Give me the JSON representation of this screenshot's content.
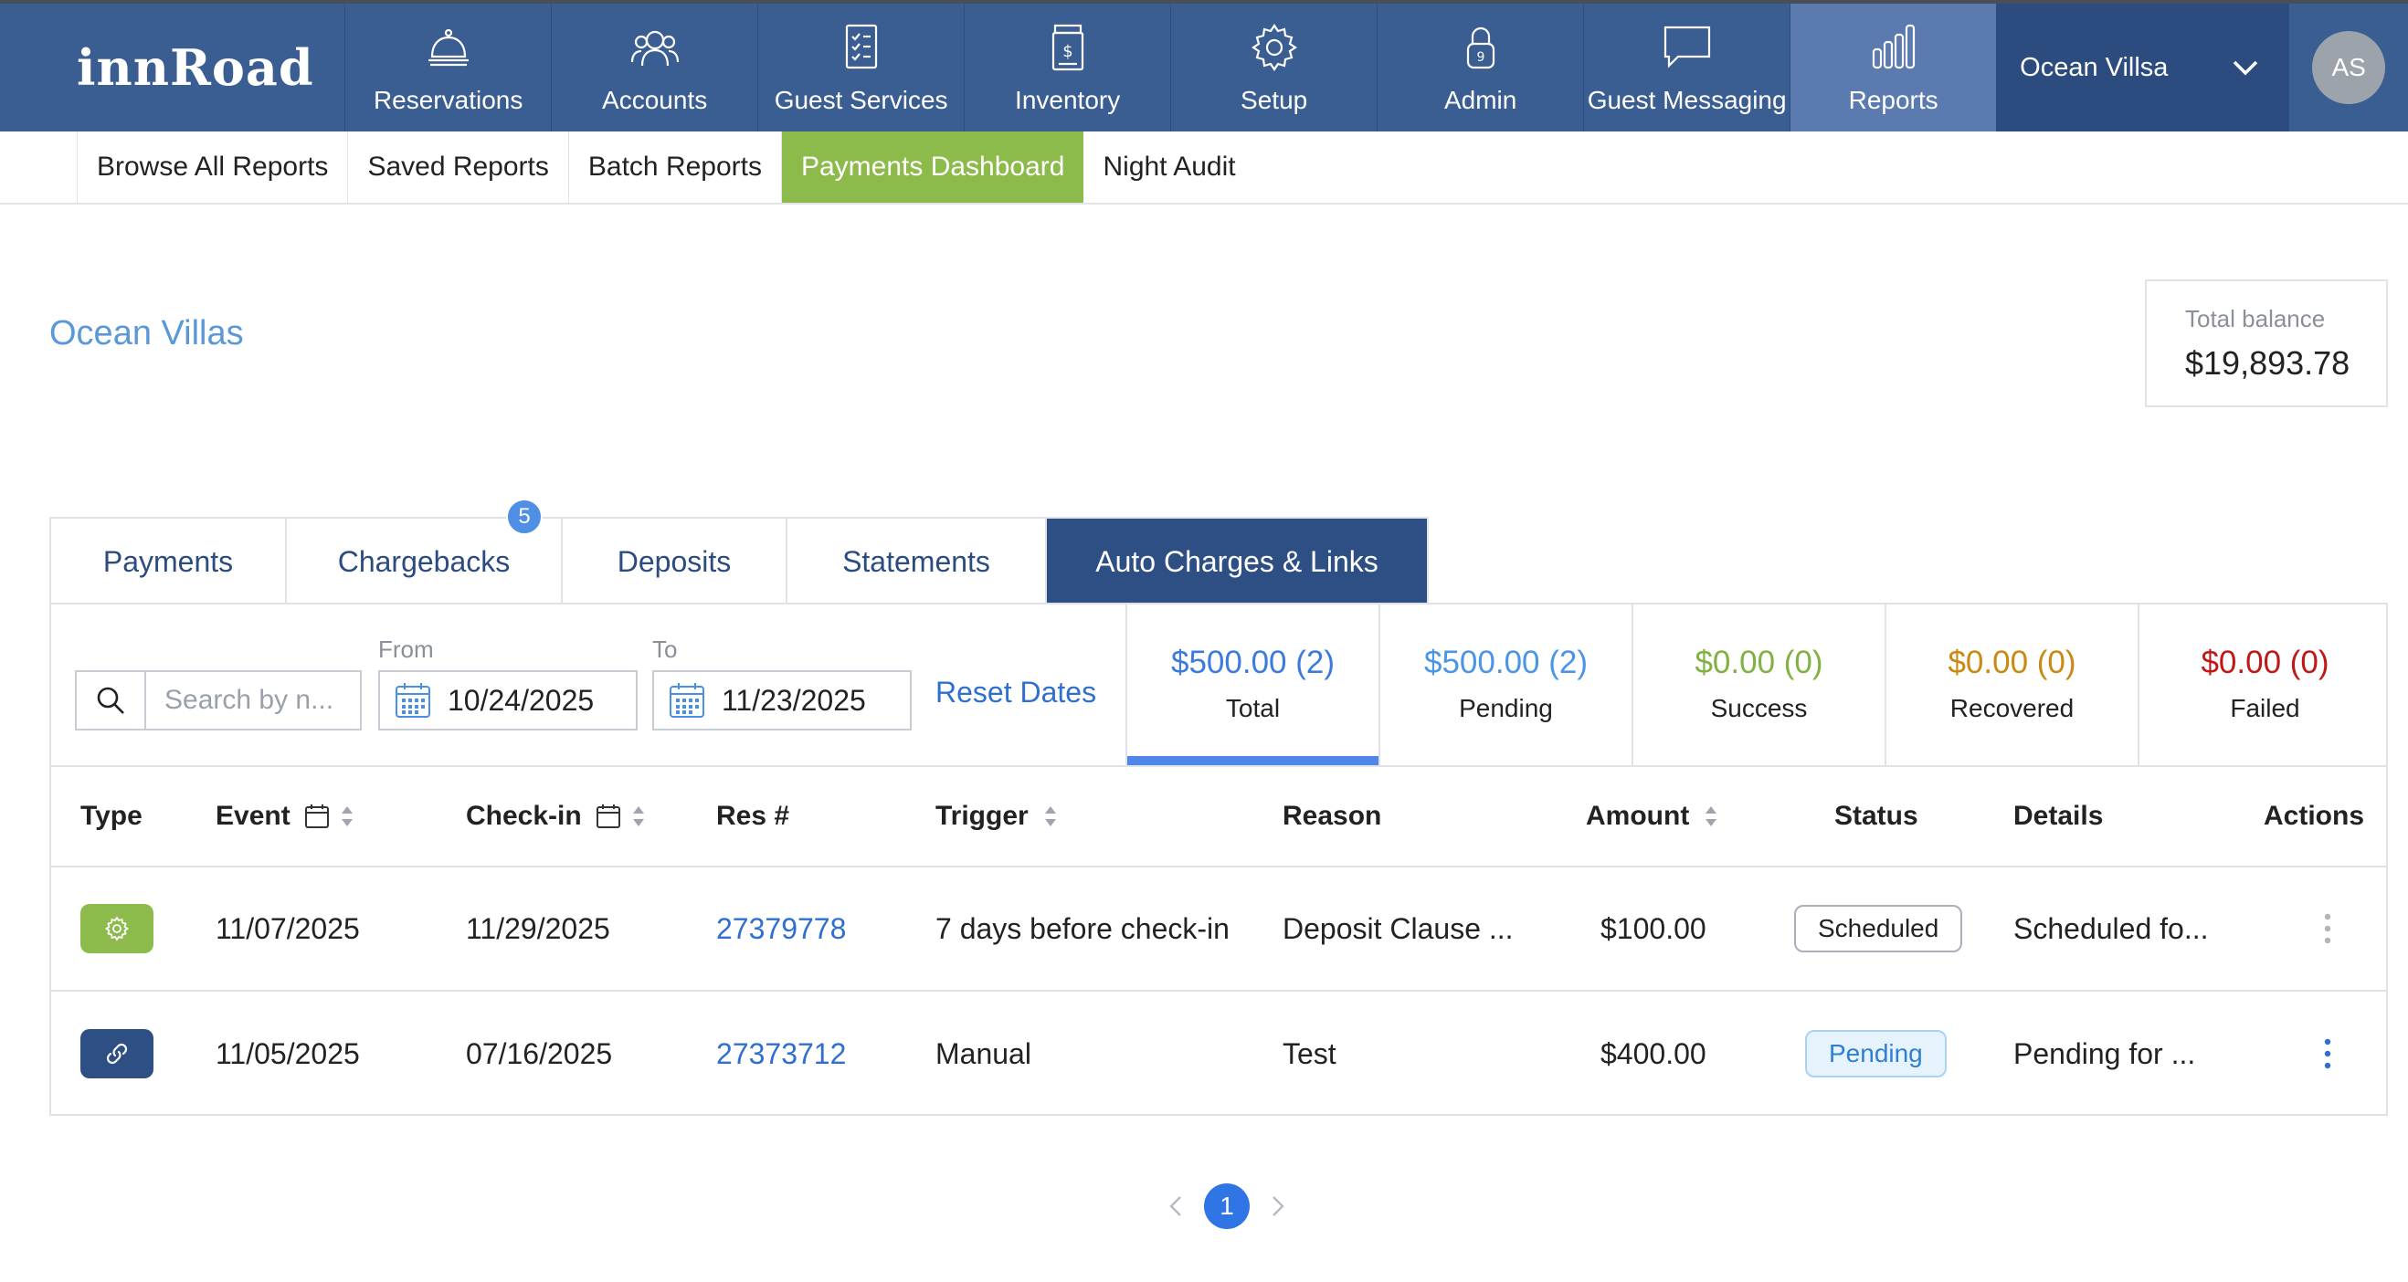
{
  "brand": {
    "logo_text": "innRoad"
  },
  "top_nav": {
    "items": [
      {
        "label": "Reservations",
        "icon": "bell-icon"
      },
      {
        "label": "Accounts",
        "icon": "users-icon"
      },
      {
        "label": "Guest Services",
        "icon": "checklist-icon"
      },
      {
        "label": "Inventory",
        "icon": "inventory-icon"
      },
      {
        "label": "Setup",
        "icon": "gear-icon"
      },
      {
        "label": "Admin",
        "icon": "lock-icon"
      },
      {
        "label": "Guest Messaging",
        "icon": "chat-icon"
      },
      {
        "label": "Reports",
        "icon": "bar-chart-icon",
        "active": true
      }
    ],
    "property_selector": "Ocean Villsa",
    "avatar_initials": "AS"
  },
  "sub_nav": {
    "items": [
      {
        "label": "Browse All Reports"
      },
      {
        "label": "Saved Reports"
      },
      {
        "label": "Batch Reports"
      },
      {
        "label": "Payments Dashboard",
        "active": true
      },
      {
        "label": "Night Audit"
      }
    ]
  },
  "header": {
    "property_name": "Ocean Villas",
    "balance_label": "Total balance",
    "balance_value": "$19,893.78"
  },
  "tabs": [
    {
      "label": "Payments"
    },
    {
      "label": "Chargebacks",
      "badge": "5"
    },
    {
      "label": "Deposits"
    },
    {
      "label": "Statements"
    },
    {
      "label": "Auto Charges & Links",
      "active": true
    }
  ],
  "filters": {
    "search_placeholder": "Search by n...",
    "from_label": "From",
    "from_value": "10/24/2025",
    "to_label": "To",
    "to_value": "11/23/2025",
    "reset_label": "Reset Dates"
  },
  "summary": [
    {
      "amount": "$500.00 (2)",
      "label": "Total",
      "color": "#3b7be0",
      "active": true
    },
    {
      "amount": "$500.00 (2)",
      "label": "Pending",
      "color": "#4a95e6"
    },
    {
      "amount": "$0.00 (0)",
      "label": "Success",
      "color": "#7fb241"
    },
    {
      "amount": "$0.00 (0)",
      "label": "Recovered",
      "color": "#c98a12"
    },
    {
      "amount": "$0.00 (0)",
      "label": "Failed",
      "color": "#c01818"
    }
  ],
  "table": {
    "headers": {
      "type": "Type",
      "event": "Event",
      "checkin": "Check-in",
      "res": "Res #",
      "trigger": "Trigger",
      "reason": "Reason",
      "amount": "Amount",
      "status": "Status",
      "details": "Details",
      "actions": "Actions"
    },
    "rows": [
      {
        "type_icon": "gear-icon",
        "type_color": "#8cba4b",
        "event": "11/07/2025",
        "checkin": "11/29/2025",
        "res": "27379778",
        "trigger": "7 days before check-in",
        "reason": "Deposit Clause ...",
        "amount": "$100.00",
        "status": "Scheduled",
        "details": "Scheduled fo..."
      },
      {
        "type_icon": "link-icon",
        "type_color": "#2e4f84",
        "event": "11/05/2025",
        "checkin": "07/16/2025",
        "res": "27373712",
        "trigger": "Manual",
        "reason": "Test",
        "amount": "$400.00",
        "status": "Pending",
        "details": "Pending for ..."
      }
    ]
  },
  "pagination": {
    "current_page": "1"
  }
}
